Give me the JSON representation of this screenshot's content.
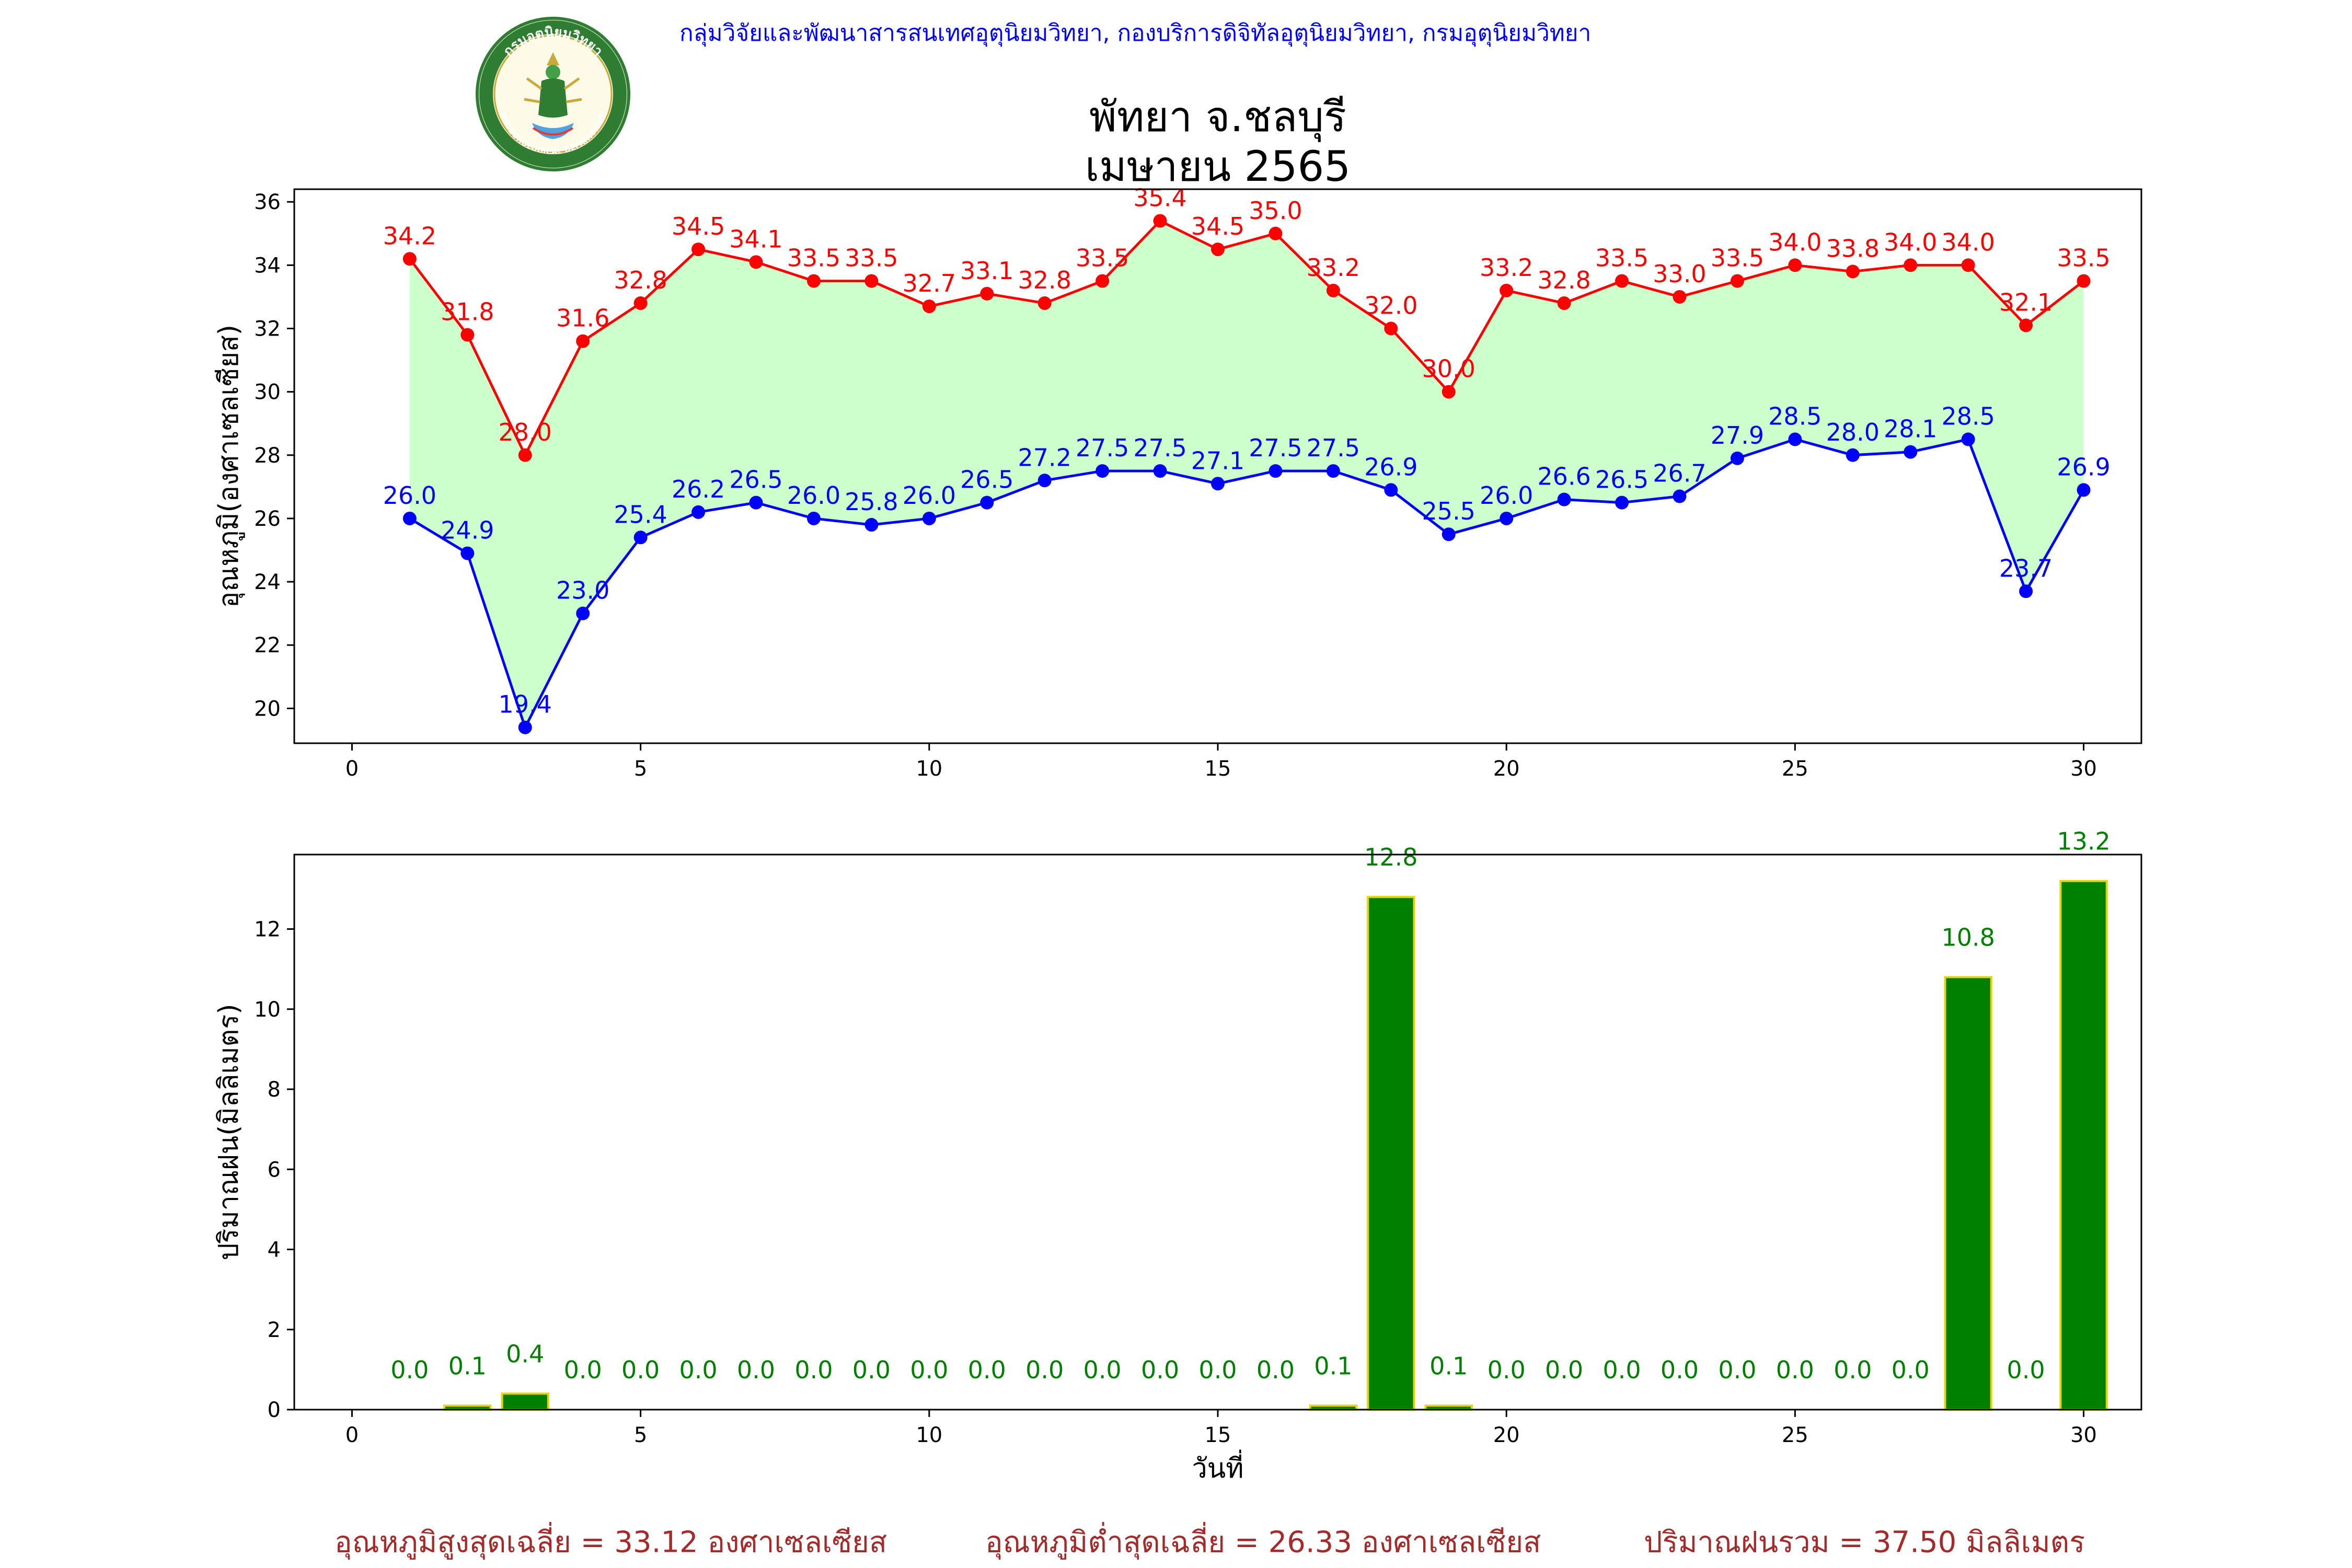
{
  "header": {
    "org_line": "กลุ่มวิจัยและพัฒนาสารสนเทศอุตุนิยมวิทยา, กองบริการดิจิทัลอุตุนิยมวิทยา, กรมอุตุนิยมวิทยา",
    "logo_text_top": "กรมอุตุนิยมวิทยา",
    "logo_text_bottom": "METEOROLOGICAL DEPARTMENT"
  },
  "title_line1": "พัทยา จ.ชลบุรี",
  "title_line2": "เมษายน 2565",
  "colors": {
    "max_temp": "#ff0000",
    "min_temp": "#0000ff",
    "fill": "#ccffcc",
    "rain_bar": "#008000",
    "rain_edge": "#e6d600",
    "rain_label": "#008000",
    "footer_text": "#a52a2a",
    "header_text": "#0000ff"
  },
  "chart_data": [
    {
      "type": "line",
      "ylabel": "อุณหภูมิ(องศาเซลเซียส)",
      "xlabel": "",
      "xlim": [
        -1,
        31
      ],
      "ylim": [
        18.9,
        36.4
      ],
      "xticks": [
        0,
        5,
        10,
        15,
        20,
        25,
        30
      ],
      "yticks": [
        20,
        22,
        24,
        26,
        28,
        30,
        32,
        34,
        36
      ],
      "grid": false,
      "x": [
        1,
        2,
        3,
        4,
        5,
        6,
        7,
        8,
        9,
        10,
        11,
        12,
        13,
        14,
        15,
        16,
        17,
        18,
        19,
        20,
        21,
        22,
        23,
        24,
        25,
        26,
        27,
        28,
        29,
        30
      ],
      "series": [
        {
          "values": [
            34.2,
            31.8,
            28.0,
            31.6,
            32.8,
            34.5,
            34.1,
            33.5,
            33.5,
            32.7,
            33.1,
            32.8,
            33.5,
            35.4,
            34.5,
            35.0,
            33.2,
            32.0,
            30.0,
            33.2,
            32.8,
            33.5,
            33.0,
            33.5,
            34.0,
            33.8,
            34.0,
            34.0,
            32.1,
            33.5
          ],
          "labels": [
            "34.2",
            "31.8",
            "28.0",
            "31.6",
            "32.8",
            "34.5",
            "34.1",
            "33.5",
            "33.5",
            "32.7",
            "33.1",
            "32.8",
            "33.5",
            "35.4",
            "34.5",
            "35.0",
            "33.2",
            "32.0",
            "30.0",
            "33.2",
            "32.8",
            "33.5",
            "33.0",
            "33.5",
            "34.0",
            "33.8",
            "34.0",
            "34.0",
            "32.1",
            "33.5"
          ]
        },
        {
          "values": [
            26.0,
            24.9,
            19.4,
            23.0,
            25.4,
            26.2,
            26.5,
            26.0,
            25.8,
            26.0,
            26.5,
            27.2,
            27.5,
            27.5,
            27.1,
            27.5,
            27.5,
            26.9,
            25.5,
            26.0,
            26.6,
            26.5,
            26.7,
            27.9,
            28.5,
            28.0,
            28.1,
            28.5,
            23.7,
            26.9
          ],
          "labels": [
            "26.0",
            "24.9",
            "19.4",
            "23.0",
            "25.4",
            "26.2",
            "26.5",
            "26.0",
            "25.8",
            "26.0",
            "26.5",
            "27.2",
            "27.5",
            "27.5",
            "27.1",
            "27.5",
            "27.5",
            "26.9",
            "25.5",
            "26.0",
            "26.6",
            "26.5",
            "26.7",
            "27.9",
            "28.5",
            "28.0",
            "28.1",
            "28.5",
            "23.7",
            "26.9"
          ]
        }
      ]
    },
    {
      "type": "bar",
      "ylabel": "ปริมาณฝน(มิลลิเมตร)",
      "xlabel": "วันที่",
      "xlim": [
        -1,
        31
      ],
      "ylim": [
        0,
        13.86
      ],
      "xticks": [
        0,
        5,
        10,
        15,
        20,
        25,
        30
      ],
      "yticks": [
        0,
        2,
        4,
        6,
        8,
        10,
        12
      ],
      "grid": false,
      "x": [
        1,
        2,
        3,
        4,
        5,
        6,
        7,
        8,
        9,
        10,
        11,
        12,
        13,
        14,
        15,
        16,
        17,
        18,
        19,
        20,
        21,
        22,
        23,
        24,
        25,
        26,
        27,
        28,
        29,
        30
      ],
      "values": [
        0.0,
        0.1,
        0.4,
        0.0,
        0.0,
        0.0,
        0.0,
        0.0,
        0.0,
        0.0,
        0.0,
        0.0,
        0.0,
        0.0,
        0.0,
        0.0,
        0.1,
        12.8,
        0.1,
        0.0,
        0.0,
        0.0,
        0.0,
        0.0,
        0.0,
        0.0,
        0.0,
        10.8,
        0.0,
        13.2
      ],
      "labels": [
        "0.0",
        "0.1",
        "0.4",
        "0.0",
        "0.0",
        "0.0",
        "0.0",
        "0.0",
        "0.0",
        "0.0",
        "0.0",
        "0.0",
        "0.0",
        "0.0",
        "0.0",
        "0.0",
        "0.1",
        "12.8",
        "0.1",
        "0.0",
        "0.0",
        "0.0",
        "0.0",
        "0.0",
        "0.0",
        "0.0",
        "0.0",
        "10.8",
        "0.0",
        "13.2"
      ]
    }
  ],
  "footer": {
    "avg_max": "อุณหภูมิสูงสุดเฉลี่ย = 33.12 องศาเซลเซียส",
    "avg_min": "อุณหภูมิต่ำสุดเฉลี่ย = 26.33 องศาเซลเซียส",
    "total_rain": "ปริมาณฝนรวม = 37.50 มิลลิเมตร"
  }
}
